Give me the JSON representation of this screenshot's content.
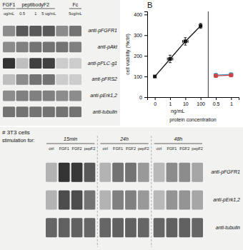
{
  "chart_data": [
    {
      "type": "heatmap",
      "rows": [
        "anti-pFGFR1",
        "anti-pAkt",
        "anti-pPLC-g1",
        "anti-pFRS2",
        "anti-pErk1,2",
        "anti-tubulin"
      ],
      "categories": [
        "ug/mL",
        "0.5",
        "1",
        "5 ug/mL",
        null,
        "5ug/mL"
      ],
      "column_groups": [
        "FGF1",
        "peptibodyF2",
        "peptibodyF2",
        "peptibodyF2",
        null,
        "Fc"
      ],
      "values": [
        [
          0.55,
          0.35,
          0.35,
          0.35,
          0.55,
          0.45
        ],
        [
          0.55,
          0.5,
          0.45,
          0.45,
          0.45,
          0.5
        ],
        [
          0.2,
          0.75,
          0.25,
          0.25,
          0.8,
          0.8
        ],
        [
          0.75,
          0.55,
          0.45,
          0.45,
          0.8,
          0.8
        ],
        [
          0.55,
          0.5,
          0.5,
          0.5,
          0.55,
          0.55
        ],
        [
          0.45,
          0.45,
          0.45,
          0.45,
          0.45,
          0.45
        ]
      ],
      "zlim": [
        0,
        1
      ]
    },
    {
      "type": "line",
      "title": "B",
      "xlabel": "protein concentration",
      "ylabel": "cell viability (%ctrl)",
      "annotations": [
        "ng/mL"
      ],
      "categories": [
        "0",
        "1",
        "10",
        "100",
        "0.5",
        "1"
      ],
      "series": [
        {
          "color": "#111111",
          "marker": "square",
          "values": [
            100,
            185,
            270,
            345,
            null,
            null
          ],
          "yerr": [
            4,
            18,
            18,
            12,
            null,
            null
          ],
          "xerr": [
            0,
            0.18,
            0.18,
            0,
            null,
            null
          ]
        },
        {
          "color": "#4499cc",
          "marker": "square",
          "values": [
            null,
            null,
            null,
            null,
            107,
            110
          ],
          "yerr": [
            null,
            null,
            null,
            null,
            8,
            8
          ],
          "xerr": [
            null,
            null,
            null,
            null,
            0.12,
            0.12
          ]
        },
        {
          "color": "#cc4444",
          "marker": "square",
          "values": [
            null,
            null,
            null,
            null,
            103,
            106
          ],
          "yerr": [
            null,
            null,
            null,
            null,
            8,
            8
          ],
          "xerr": [
            null,
            null,
            null,
            null,
            0.12,
            0.12
          ]
        }
      ],
      "ylim": [
        0,
        415
      ],
      "yticks": [
        0,
        100,
        200,
        300,
        400
      ]
    },
    {
      "type": "heatmap",
      "title": "# 3T3 cells",
      "subtitle": "stimulation for:",
      "groups": [
        "15min",
        "24h",
        "48h"
      ],
      "categories": [
        "ctrl",
        "FGF1",
        "FGF2",
        "pepF2"
      ],
      "rows": [
        "anti-pFGFR1",
        "anti-pErk1,2",
        "anti-tubulin"
      ],
      "values": [
        [
          [
            0.7,
            0.2,
            0.22,
            0.35
          ],
          [
            0.7,
            0.3,
            0.3,
            0.45
          ],
          [
            0.4,
            0.38,
            0.38,
            0.4
          ]
        ],
        [
          [
            0.7,
            0.45,
            0.45,
            0.6
          ],
          [
            0.7,
            0.5,
            0.5,
            0.6
          ],
          [
            0.4,
            0.38,
            0.38,
            0.4
          ]
        ],
        [
          [
            0.72,
            0.55,
            0.55,
            0.65
          ],
          [
            0.72,
            0.58,
            0.58,
            0.65
          ],
          [
            0.4,
            0.38,
            0.38,
            0.4
          ]
        ]
      ],
      "zlim": [
        0,
        1
      ]
    }
  ]
}
